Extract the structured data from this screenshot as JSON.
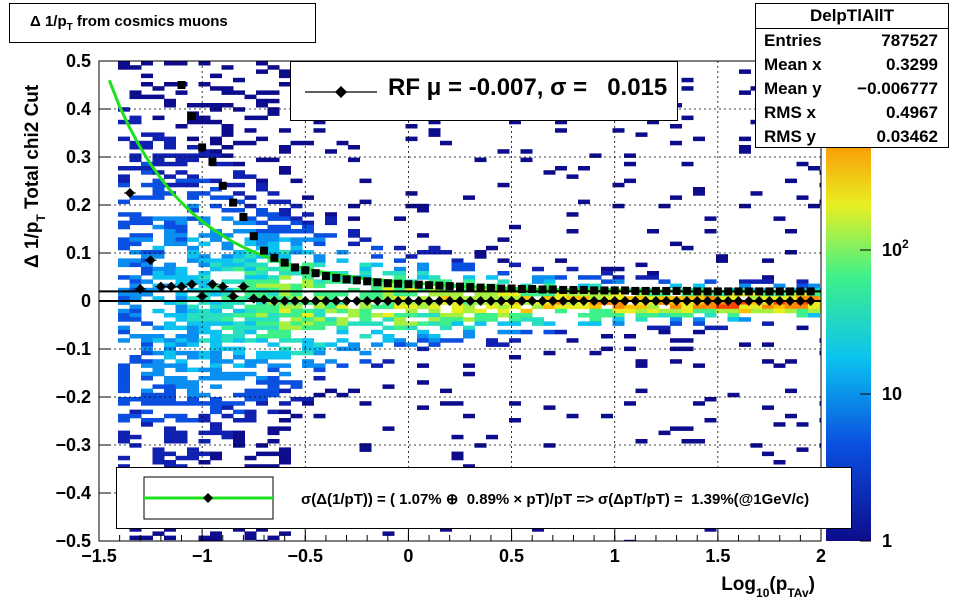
{
  "title": "Δ 1/p_T  from cosmics muons",
  "stats": {
    "name": "DelpTlAllT",
    "rows": [
      {
        "label": "Entries",
        "value": "787527"
      },
      {
        "label": "Mean x",
        "value": "0.3299"
      },
      {
        "label": "Mean y",
        "value": "−0.006777"
      },
      {
        "label": "RMS x",
        "value": "0.4967"
      },
      {
        "label": "RMS y",
        "value": "0.03462"
      }
    ]
  },
  "legend_rf": "RF μ = -0.007, σ =   0.015",
  "legend_fit": "σ(Δ(1/pT)) = ( 1.07% ⊕  0.89% × pT)/pT => σ(ΔpT/pT) =  1.39%(@1GeV/c)",
  "colors": {
    "fit_line": "#1fe01f",
    "markers": "#000000"
  },
  "chart_data": {
    "type": "heatmap",
    "title": "Δ 1/p_T  from cosmics muons",
    "xlabel": "Log10(pTAv)",
    "ylabel": "Δ 1/pT   Total chi2 Cut",
    "xlim": [
      -1.5,
      2
    ],
    "ylim": [
      -0.5,
      0.5
    ],
    "xticks": [
      "−1.5",
      "−1",
      "−0.5",
      "0",
      "0.5",
      "1",
      "1.5",
      "2"
    ],
    "yticks": [
      "−0.5",
      "−0.4",
      "−0.3",
      "−0.2",
      "−0.1",
      "0",
      "0.1",
      "0.2",
      "0.3",
      "0.4",
      "0.5"
    ],
    "zscale": "log",
    "zticks": [
      "1",
      "10",
      "10^2"
    ],
    "grid": true,
    "series": [
      {
        "name": "RF",
        "kind": "mean-markers",
        "x": [
          -1.35,
          -1.3,
          -1.25,
          -1.2,
          -1.15,
          -1.1,
          -1.05,
          -1.0,
          -0.95,
          -0.9,
          -0.85,
          -0.8,
          -0.75,
          -0.7,
          -0.65,
          -0.6,
          -0.55,
          -0.5,
          -0.45,
          -0.4,
          -0.35,
          -0.3,
          -0.25,
          -0.2,
          -0.15,
          -0.1,
          -0.05,
          0.0,
          0.05,
          0.1,
          0.15,
          0.2,
          0.25,
          0.3,
          0.35,
          0.4,
          0.45,
          0.5,
          0.55,
          0.6,
          0.65,
          0.7,
          0.75,
          0.8,
          0.85,
          0.9,
          0.95,
          1.0,
          1.05,
          1.1,
          1.15,
          1.2,
          1.25,
          1.3,
          1.35,
          1.4,
          1.45,
          1.5,
          1.55,
          1.6,
          1.65,
          1.7,
          1.75,
          1.8,
          1.85,
          1.9,
          1.95
        ],
        "y": [
          0.225,
          0.025,
          0.085,
          0.03,
          0.03,
          0.03,
          0.035,
          0.01,
          0.035,
          0.03,
          0.01,
          0.03,
          0.005,
          0.003,
          0.0,
          0.0,
          0.0,
          0.0,
          0.0,
          0.0,
          0.0,
          0.0,
          0.0,
          0.0,
          0.0,
          0.0,
          0.0,
          0.0,
          0.0,
          0.0,
          0.0,
          0.0,
          0.0,
          0.0,
          0.0,
          0.0,
          0.0,
          0.0,
          0.0,
          0.0,
          0.0,
          0.0,
          0.0,
          0.0,
          0.0,
          0.0,
          0.0,
          0.0,
          0.0,
          0.0,
          0.0,
          0.0,
          0.0,
          0.0,
          0.0,
          0.0,
          0.0,
          0.0,
          0.0,
          0.0,
          0.0,
          0.0,
          0.0,
          0.0,
          0.0,
          0.0,
          0.0
        ]
      },
      {
        "name": "sigma",
        "kind": "square-markers",
        "x": [
          -1.1,
          -1.05,
          -1.0,
          -0.95,
          -0.9,
          -0.85,
          -0.8,
          -0.75,
          -0.7,
          -0.65,
          -0.6,
          -0.55,
          -0.5,
          -0.45,
          -0.4,
          -0.35,
          -0.3,
          -0.25,
          -0.2,
          -0.15,
          -0.1,
          -0.05,
          0.0,
          0.05,
          0.1,
          0.15,
          0.2,
          0.25,
          0.3,
          0.35,
          0.4,
          0.45,
          0.5,
          0.55,
          0.6,
          0.65,
          0.7,
          0.75,
          0.8,
          0.85,
          0.9,
          0.95,
          1.0,
          1.05,
          1.1,
          1.15,
          1.2,
          1.25,
          1.3,
          1.35,
          1.4,
          1.45,
          1.5,
          1.55,
          1.6,
          1.65,
          1.7,
          1.75,
          1.8,
          1.85,
          1.9,
          1.95
        ],
        "y": [
          0.45,
          0.385,
          0.32,
          0.29,
          0.24,
          0.205,
          0.175,
          0.135,
          0.105,
          0.09,
          0.08,
          0.07,
          0.064,
          0.058,
          0.052,
          0.048,
          0.045,
          0.043,
          0.041,
          0.039,
          0.037,
          0.036,
          0.035,
          0.034,
          0.033,
          0.032,
          0.031,
          0.03,
          0.029,
          0.028,
          0.027,
          0.026,
          0.026,
          0.025,
          0.025,
          0.024,
          0.024,
          0.023,
          0.023,
          0.023,
          0.022,
          0.022,
          0.022,
          0.022,
          0.021,
          0.021,
          0.021,
          0.021,
          0.021,
          0.021,
          0.02,
          0.02,
          0.02,
          0.02,
          0.02,
          0.02,
          0.02,
          0.02,
          0.02,
          0.02,
          0.02,
          0.02
        ]
      },
      {
        "name": "fit",
        "kind": "line",
        "x": [
          -1.45,
          -1.4,
          -1.35,
          -1.3,
          -1.25,
          -1.2,
          -1.15,
          -1.1,
          -1.05,
          -1.0,
          -0.95,
          -0.9,
          -0.85,
          -0.8,
          -0.75,
          -0.7,
          -0.65,
          -0.6,
          -0.55,
          -0.5,
          -0.45,
          -0.4,
          -0.3,
          -0.2,
          -0.1,
          0.0,
          0.2,
          0.4,
          0.6,
          0.8,
          1.0,
          1.2,
          1.4,
          1.6,
          1.8,
          2.0
        ],
        "y": [
          0.46,
          0.405,
          0.36,
          0.32,
          0.285,
          0.255,
          0.228,
          0.205,
          0.184,
          0.166,
          0.15,
          0.136,
          0.123,
          0.112,
          0.102,
          0.094,
          0.086,
          0.079,
          0.073,
          0.068,
          0.063,
          0.059,
          0.052,
          0.046,
          0.042,
          0.038,
          0.032,
          0.028,
          0.025,
          0.023,
          0.022,
          0.021,
          0.02,
          0.02,
          0.02,
          0.02
        ]
      },
      {
        "name": "zero",
        "kind": "hline",
        "y": 0.02
      },
      {
        "name": "mean",
        "kind": "hline",
        "y": 0.0
      }
    ]
  }
}
